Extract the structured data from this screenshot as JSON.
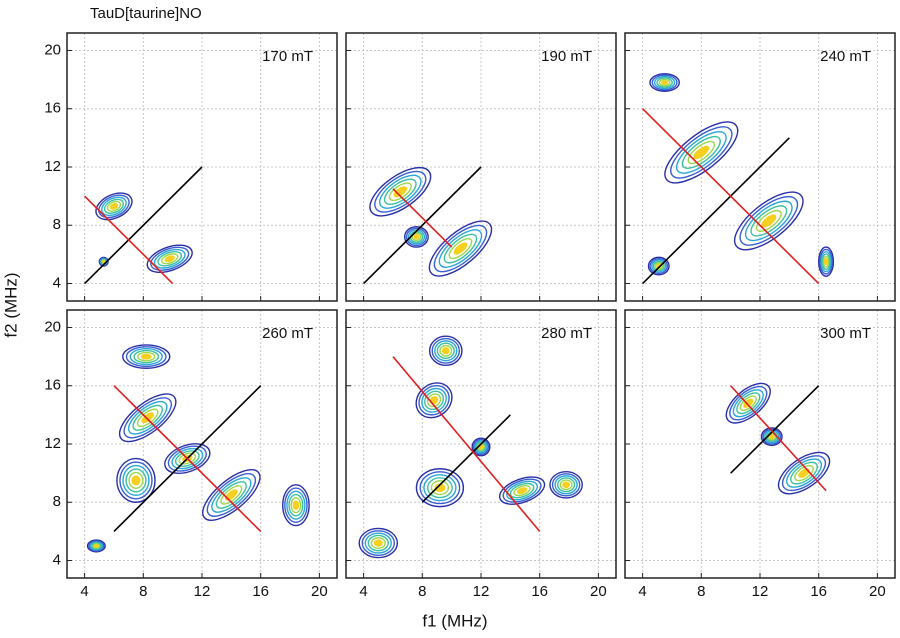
{
  "title": "TauD[taurine]NO",
  "xlabel": "f1 (MHz)",
  "ylabel": "f2 (MHz)",
  "contour_colors": [
    "#2b2fa6",
    "#3a5fd0",
    "#2aa7d8",
    "#3cc0a0",
    "#9cd84a",
    "#f5d020"
  ],
  "chart_data": [
    {
      "type": "contour",
      "label": "170 mT",
      "xlim": [
        2.8,
        21.2
      ],
      "ylim": [
        2.8,
        21.2
      ],
      "xticks": [
        4,
        8,
        12,
        16,
        20
      ],
      "yticks": [
        4,
        8,
        12,
        16,
        20
      ],
      "grid": true,
      "lines": [
        {
          "color": "#000000",
          "x": [
            4,
            12
          ],
          "y": [
            4,
            12
          ]
        },
        {
          "color": "#e02020",
          "x": [
            4,
            10
          ],
          "y": [
            10,
            4
          ]
        }
      ],
      "peaks": [
        {
          "x": 6,
          "y": 9.3,
          "rx": 1.3,
          "ry": 0.8,
          "angle": -25
        },
        {
          "x": 9.8,
          "y": 5.7,
          "rx": 1.6,
          "ry": 0.8,
          "angle": -20
        },
        {
          "x": 5.3,
          "y": 5.5,
          "rx": 0.3,
          "ry": 0.3,
          "angle": 0
        }
      ]
    },
    {
      "type": "contour",
      "label": "190 mT",
      "xlim": [
        2.8,
        21.2
      ],
      "ylim": [
        2.8,
        21.2
      ],
      "xticks": [
        4,
        8,
        12,
        16,
        20
      ],
      "yticks": [
        4,
        8,
        12,
        16,
        20
      ],
      "grid": true,
      "lines": [
        {
          "color": "#000000",
          "x": [
            4,
            12
          ],
          "y": [
            4,
            12
          ]
        },
        {
          "color": "#e02020",
          "x": [
            6,
            10
          ],
          "y": [
            10.5,
            6.5
          ]
        }
      ],
      "peaks": [
        {
          "x": 6.5,
          "y": 10.3,
          "rx": 2.4,
          "ry": 1.1,
          "angle": -35
        },
        {
          "x": 10.6,
          "y": 6.4,
          "rx": 2.6,
          "ry": 1.1,
          "angle": -40
        },
        {
          "x": 7.6,
          "y": 7.2,
          "rx": 0.8,
          "ry": 0.7,
          "angle": 0
        }
      ]
    },
    {
      "type": "contour",
      "label": "240 mT",
      "xlim": [
        2.8,
        21.2
      ],
      "ylim": [
        2.8,
        21.2
      ],
      "xticks": [
        4,
        8,
        12,
        16,
        20
      ],
      "yticks": [
        4,
        8,
        12,
        16,
        20
      ],
      "grid": true,
      "lines": [
        {
          "color": "#000000",
          "x": [
            4,
            14
          ],
          "y": [
            4,
            14
          ]
        },
        {
          "color": "#e02020",
          "x": [
            4,
            16
          ],
          "y": [
            16,
            4
          ]
        }
      ],
      "peaks": [
        {
          "x": 8,
          "y": 13,
          "rx": 3,
          "ry": 1.2,
          "angle": -38
        },
        {
          "x": 12.6,
          "y": 8.3,
          "rx": 2.8,
          "ry": 1.2,
          "angle": -38
        },
        {
          "x": 5.1,
          "y": 5.2,
          "rx": 0.7,
          "ry": 0.6,
          "angle": 0
        },
        {
          "x": 16.5,
          "y": 5.5,
          "rx": 0.5,
          "ry": 1,
          "angle": 0
        },
        {
          "x": 5.5,
          "y": 17.8,
          "rx": 1,
          "ry": 0.6,
          "angle": 0
        }
      ]
    },
    {
      "type": "contour",
      "label": "260 mT",
      "xlim": [
        2.8,
        21.2
      ],
      "ylim": [
        2.8,
        21.2
      ],
      "xticks": [
        4,
        8,
        12,
        16,
        20
      ],
      "yticks": [
        4,
        8,
        12,
        16,
        20
      ],
      "grid": true,
      "lines": [
        {
          "color": "#000000",
          "x": [
            6,
            16
          ],
          "y": [
            6,
            16
          ]
        },
        {
          "color": "#e02020",
          "x": [
            6,
            16
          ],
          "y": [
            16,
            6
          ]
        }
      ],
      "peaks": [
        {
          "x": 8.3,
          "y": 13.8,
          "rx": 2.3,
          "ry": 1,
          "angle": -38
        },
        {
          "x": 11,
          "y": 11,
          "rx": 1.6,
          "ry": 0.9,
          "angle": -20
        },
        {
          "x": 14,
          "y": 8.5,
          "rx": 2.4,
          "ry": 1,
          "angle": -40
        },
        {
          "x": 7.5,
          "y": 9.5,
          "rx": 1.3,
          "ry": 1.5,
          "angle": 0
        },
        {
          "x": 8.2,
          "y": 18,
          "rx": 1.6,
          "ry": 0.8,
          "angle": 0
        },
        {
          "x": 18.4,
          "y": 7.8,
          "rx": 0.9,
          "ry": 1.4,
          "angle": 0
        },
        {
          "x": 4.8,
          "y": 5,
          "rx": 0.6,
          "ry": 0.4,
          "angle": 0
        }
      ]
    },
    {
      "type": "contour",
      "label": "280 mT",
      "xlim": [
        2.8,
        21.2
      ],
      "ylim": [
        2.8,
        21.2
      ],
      "xticks": [
        4,
        8,
        12,
        16,
        20
      ],
      "yticks": [
        4,
        8,
        12,
        16,
        20
      ],
      "grid": true,
      "lines": [
        {
          "color": "#000000",
          "x": [
            8,
            14
          ],
          "y": [
            8,
            14
          ]
        },
        {
          "color": "#e02020",
          "x": [
            6,
            16
          ],
          "y": [
            18,
            6
          ]
        }
      ],
      "peaks": [
        {
          "x": 9.6,
          "y": 18.4,
          "rx": 1.1,
          "ry": 1,
          "angle": 0
        },
        {
          "x": 8.8,
          "y": 15,
          "rx": 1.3,
          "ry": 1.1,
          "angle": -40
        },
        {
          "x": 12,
          "y": 11.8,
          "rx": 0.6,
          "ry": 0.6,
          "angle": 0
        },
        {
          "x": 9.2,
          "y": 9,
          "rx": 1.6,
          "ry": 1.3,
          "angle": 0
        },
        {
          "x": 14.8,
          "y": 8.8,
          "rx": 1.6,
          "ry": 0.8,
          "angle": -20
        },
        {
          "x": 17.8,
          "y": 9.2,
          "rx": 1.1,
          "ry": 0.9,
          "angle": 0
        },
        {
          "x": 5,
          "y": 5.2,
          "rx": 1.3,
          "ry": 1,
          "angle": 0
        }
      ]
    },
    {
      "type": "contour",
      "label": "300 mT",
      "xlim": [
        2.8,
        21.2
      ],
      "ylim": [
        2.8,
        21.2
      ],
      "xticks": [
        4,
        8,
        12,
        16,
        20
      ],
      "yticks": [
        4,
        8,
        12,
        16,
        20
      ],
      "grid": true,
      "lines": [
        {
          "color": "#000000",
          "x": [
            10,
            16
          ],
          "y": [
            10,
            16
          ]
        },
        {
          "color": "#e02020",
          "x": [
            10,
            16.5
          ],
          "y": [
            16,
            8.8
          ]
        }
      ],
      "peaks": [
        {
          "x": 11.2,
          "y": 14.8,
          "rx": 1.8,
          "ry": 0.9,
          "angle": -40
        },
        {
          "x": 15,
          "y": 10,
          "rx": 2,
          "ry": 1,
          "angle": -35
        },
        {
          "x": 12.8,
          "y": 12.5,
          "rx": 0.7,
          "ry": 0.6,
          "angle": 0
        }
      ]
    }
  ]
}
